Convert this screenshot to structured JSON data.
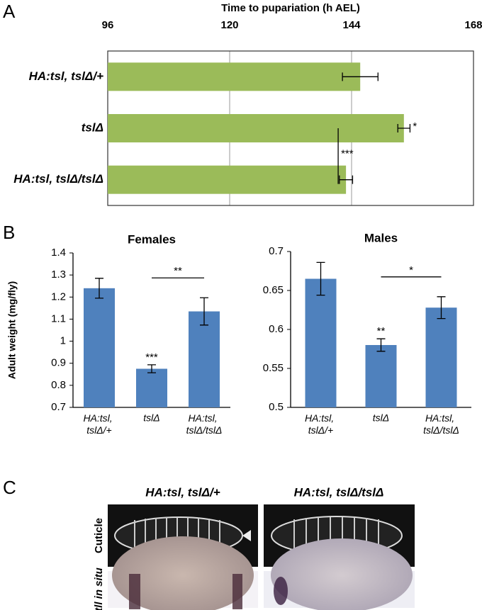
{
  "panel_labels": [
    "A",
    "B",
    "C"
  ],
  "chart_data": [
    {
      "type": "bar",
      "orientation": "horizontal",
      "xlabel": "Time to pupariation (h AEL)",
      "categories": [
        "HA:tsl, tslΔ/+",
        "tslΔ",
        "HA:tsl, tslΔ/tslΔ"
      ],
      "values": [
        145.7,
        154.3,
        142.9
      ],
      "errors": [
        3.5,
        1.2,
        1.3
      ],
      "color": "#9bbb59",
      "xlim": [
        96,
        168
      ],
      "xticks": [
        96,
        120,
        144,
        168
      ],
      "grid": true,
      "annotations": [
        "*",
        "***"
      ]
    },
    {
      "type": "bar",
      "title": "Females",
      "ylabel": "Adult weight (mg/fly)",
      "categories": [
        "HA:tsl, tslΔ/+",
        "tslΔ",
        "HA:tsl, tslΔ/tslΔ"
      ],
      "values": [
        1.24,
        0.875,
        1.135
      ],
      "errors": [
        0.045,
        0.018,
        0.062
      ],
      "color": "#4f81bd",
      "ylim": [
        0.7,
        1.4
      ],
      "yticks": [
        0.7,
        0.8,
        0.9,
        1,
        1.1,
        1.2,
        1.3,
        1.4
      ],
      "annotations": [
        "***",
        "**"
      ]
    },
    {
      "type": "bar",
      "title": "Males",
      "categories": [
        "HA:tsl, tslΔ/+",
        "tslΔ",
        "HA:tsl, tslΔ/tslΔ"
      ],
      "values": [
        0.665,
        0.58,
        0.628
      ],
      "errors": [
        0.021,
        0.008,
        0.014
      ],
      "color": "#4f81bd",
      "ylim": [
        0.5,
        0.7
      ],
      "yticks": [
        0.5,
        0.55,
        0.6,
        0.65,
        0.7
      ],
      "annotations": [
        "**",
        "*"
      ]
    }
  ],
  "images": {
    "columns": [
      "HA:tsl, tslΔ/+",
      "HA:tsl, tslΔ/tslΔ"
    ],
    "rows": [
      "Cuticle",
      "tll in situ"
    ]
  }
}
